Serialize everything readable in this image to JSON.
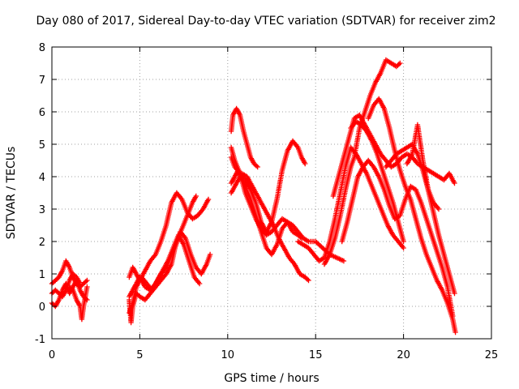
{
  "chart_data": {
    "type": "scatter",
    "title": "Day 080 of 2017, Sidereal Day-to-day VTEC variation (SDTVAR) for receiver zim2",
    "xlabel": "GPS time / hours",
    "ylabel": "SDTVAR / TECUs",
    "xlim": [
      0,
      25
    ],
    "ylim": [
      -1,
      8
    ],
    "xticks": [
      "0",
      "5",
      "10",
      "15",
      "20",
      "25"
    ],
    "yticks": [
      "-1",
      "0",
      "1",
      "2",
      "3",
      "4",
      "5",
      "6",
      "7",
      "8"
    ],
    "grid": true,
    "marker": "plus",
    "color": "#ff0000",
    "series": [
      {
        "x": [
          0.0,
          0.2,
          0.4,
          0.6,
          0.8,
          1.0,
          1.2,
          1.4,
          1.6,
          1.8,
          2.0
        ],
        "y": [
          0.1,
          0.0,
          0.2,
          0.5,
          0.7,
          0.4,
          0.6,
          0.8,
          0.5,
          0.3,
          0.2
        ]
      },
      {
        "x": [
          0.0,
          0.2,
          0.4,
          0.6,
          0.8,
          1.0,
          1.2,
          1.4,
          1.6,
          1.8,
          2.0
        ],
        "y": [
          0.7,
          0.8,
          0.9,
          1.1,
          1.4,
          1.2,
          0.9,
          0.7,
          0.6,
          0.7,
          0.8
        ]
      },
      {
        "x": [
          0.0,
          0.2,
          0.4,
          0.6,
          0.8,
          1.0,
          1.2,
          1.4,
          1.6
        ],
        "y": [
          0.4,
          0.5,
          0.4,
          0.3,
          0.5,
          0.8,
          1.0,
          0.9,
          0.7
        ]
      },
      {
        "x": [
          1.0,
          1.2,
          1.4,
          1.6,
          1.7,
          1.8,
          2.0
        ],
        "y": [
          0.6,
          0.5,
          0.2,
          0.0,
          -0.4,
          0.0,
          0.6
        ]
      },
      {
        "x": [
          4.4,
          4.5,
          4.6,
          4.8,
          5.0,
          5.3,
          5.6,
          5.9,
          6.2,
          6.5,
          6.8,
          7.0,
          7.3,
          7.6,
          7.9,
          8.2,
          8.5,
          8.8,
          9.0
        ],
        "y": [
          0.2,
          -0.5,
          0.0,
          0.4,
          0.3,
          0.2,
          0.4,
          0.6,
          0.8,
          1.0,
          1.3,
          1.8,
          2.3,
          2.1,
          1.6,
          1.2,
          1.0,
          1.3,
          1.6
        ]
      },
      {
        "x": [
          4.4,
          4.6,
          4.8,
          5.0,
          5.3,
          5.6,
          5.9,
          6.2,
          6.5,
          6.8,
          7.1,
          7.4,
          7.7,
          8.0,
          8.3,
          8.6,
          8.9
        ],
        "y": [
          0.9,
          1.2,
          1.0,
          0.8,
          1.1,
          1.4,
          1.6,
          2.0,
          2.5,
          3.2,
          3.5,
          3.3,
          2.9,
          2.7,
          2.8,
          3.0,
          3.3
        ]
      },
      {
        "x": [
          4.4,
          4.6,
          4.8,
          5.0,
          5.3,
          5.6,
          5.9,
          6.2,
          6.5,
          6.8,
          7.1,
          7.4,
          7.7,
          8.0,
          8.2
        ],
        "y": [
          0.3,
          0.5,
          0.7,
          0.9,
          0.6,
          0.5,
          0.7,
          1.0,
          1.2,
          1.6,
          2.0,
          2.4,
          2.8,
          3.2,
          3.4
        ]
      },
      {
        "x": [
          4.4,
          4.6,
          4.8,
          5.1,
          5.4,
          5.7,
          6.0,
          6.3,
          6.6,
          6.9,
          7.2,
          7.5,
          7.8,
          8.1,
          8.4
        ],
        "y": [
          -0.2,
          0.1,
          0.6,
          0.9,
          0.7,
          0.5,
          0.8,
          1.1,
          1.4,
          1.8,
          2.2,
          1.9,
          1.4,
          0.9,
          0.7
        ]
      },
      {
        "x": [
          10.2,
          10.4,
          10.6,
          10.8,
          11.0,
          11.3,
          11.6,
          11.9,
          12.2,
          12.5,
          12.8,
          13.1,
          13.4,
          13.7,
          14.0,
          14.2
        ],
        "y": [
          3.8,
          4.0,
          4.2,
          3.9,
          3.5,
          3.1,
          2.7,
          2.4,
          2.2,
          2.3,
          2.5,
          2.7,
          2.6,
          2.3,
          2.2,
          2.1
        ]
      },
      {
        "x": [
          10.2,
          10.3,
          10.5,
          10.7,
          10.9,
          11.1,
          11.3,
          11.5,
          11.7
        ],
        "y": [
          5.4,
          5.9,
          6.1,
          5.9,
          5.4,
          5.0,
          4.6,
          4.4,
          4.3
        ]
      },
      {
        "x": [
          10.2,
          10.4,
          10.7,
          11.0,
          11.3,
          11.6,
          11.9,
          12.2,
          12.5,
          12.8,
          13.1,
          13.4,
          13.7,
          14.0,
          14.2,
          14.4
        ],
        "y": [
          4.6,
          4.3,
          4.1,
          3.9,
          3.6,
          3.2,
          2.6,
          2.3,
          2.6,
          3.3,
          4.2,
          4.8,
          5.1,
          4.9,
          4.6,
          4.4
        ]
      },
      {
        "x": [
          10.2,
          10.4,
          10.7,
          11.0,
          11.3,
          11.6,
          11.9,
          12.2,
          12.5,
          12.8,
          13.1,
          13.4,
          13.7,
          14.0,
          14.3,
          14.6,
          15.0,
          15.4,
          15.8,
          16.2,
          16.6
        ],
        "y": [
          4.9,
          4.5,
          4.1,
          3.7,
          3.3,
          2.8,
          2.3,
          1.8,
          1.6,
          1.9,
          2.4,
          2.6,
          2.5,
          2.3,
          2.1,
          2.0,
          2.0,
          1.8,
          1.6,
          1.5,
          1.4
        ]
      },
      {
        "x": [
          10.2,
          10.5,
          10.8,
          11.1,
          11.4,
          11.7,
          12.0,
          12.3,
          12.6,
          12.9,
          13.2,
          13.5,
          13.8,
          14.1,
          14.4,
          14.6
        ],
        "y": [
          3.5,
          3.8,
          4.1,
          4.0,
          3.7,
          3.4,
          3.1,
          2.8,
          2.5,
          2.1,
          1.8,
          1.5,
          1.3,
          1.0,
          0.9,
          0.8
        ]
      },
      {
        "x": [
          14.0,
          14.3,
          14.6,
          14.9,
          15.2,
          15.5,
          15.8,
          16.1,
          16.4,
          16.7,
          17.0,
          17.3,
          17.6,
          17.9,
          18.2,
          18.5,
          18.8,
          19.1,
          19.4,
          19.7,
          20.0
        ],
        "y": [
          2.0,
          1.9,
          1.8,
          1.6,
          1.4,
          1.5,
          2.0,
          2.7,
          3.5,
          4.3,
          4.9,
          4.7,
          4.4,
          4.1,
          3.7,
          3.3,
          2.9,
          2.5,
          2.2,
          2.0,
          1.8
        ]
      },
      {
        "x": [
          15.5,
          15.8,
          16.1,
          16.4,
          16.7,
          17.0,
          17.2,
          17.5,
          17.8,
          18.1,
          18.4,
          18.7,
          19.0,
          19.3,
          19.6,
          19.8
        ],
        "y": [
          1.3,
          1.6,
          2.1,
          2.8,
          3.6,
          4.3,
          4.6,
          5.5,
          6.0,
          6.5,
          6.9,
          7.2,
          7.6,
          7.5,
          7.4,
          7.5
        ]
      },
      {
        "x": [
          16.0,
          16.4,
          16.8,
          17.2,
          17.5,
          17.8,
          18.1,
          18.4,
          18.7,
          19.0,
          19.3,
          19.6,
          19.9,
          20.2,
          20.5,
          20.8,
          21.1,
          21.4,
          21.7,
          22.0,
          22.3,
          22.6,
          22.9
        ],
        "y": [
          3.4,
          4.2,
          5.0,
          5.8,
          5.9,
          5.6,
          5.3,
          5.0,
          4.7,
          4.5,
          4.3,
          4.4,
          4.6,
          4.7,
          4.6,
          4.4,
          4.3,
          4.2,
          4.1,
          4.0,
          3.9,
          4.1,
          3.8
        ]
      },
      {
        "x": [
          16.5,
          16.8,
          17.1,
          17.4,
          17.7,
          18.0,
          18.3,
          18.6,
          18.9,
          19.2,
          19.5,
          19.8,
          20.1,
          20.4,
          20.7,
          21.0,
          21.3,
          21.6,
          21.9,
          22.2,
          22.5,
          22.8
        ],
        "y": [
          2.0,
          2.6,
          3.3,
          4.0,
          4.3,
          4.5,
          4.3,
          4.0,
          3.6,
          3.1,
          2.7,
          2.8,
          3.3,
          3.7,
          3.6,
          3.2,
          2.7,
          2.2,
          1.7,
          1.2,
          0.6,
          -0.3
        ]
      },
      {
        "x": [
          18.0,
          18.3,
          18.6,
          18.9,
          19.2,
          19.5,
          19.8,
          20.1,
          20.4,
          20.7,
          21.0,
          21.3,
          21.6,
          21.9,
          22.2,
          22.5,
          22.8,
          22.95
        ],
        "y": [
          5.8,
          6.2,
          6.4,
          6.1,
          5.5,
          4.8,
          4.2,
          3.7,
          3.3,
          2.7,
          2.1,
          1.6,
          1.2,
          0.8,
          0.5,
          0.1,
          -0.4,
          -0.8
        ]
      },
      {
        "x": [
          20.2,
          20.5,
          20.8,
          21.1,
          21.4,
          21.7,
          22.0,
          22.3,
          22.6,
          22.9
        ],
        "y": [
          4.4,
          4.7,
          5.6,
          4.5,
          3.6,
          2.9,
          2.2,
          1.6,
          1.0,
          0.4
        ]
      },
      {
        "x": [
          19.0,
          19.3,
          19.6,
          19.9,
          20.2,
          20.5,
          20.8,
          21.1,
          21.4,
          21.7,
          22.0
        ],
        "y": [
          4.3,
          4.5,
          4.7,
          4.8,
          4.9,
          5.0,
          4.7,
          4.2,
          3.6,
          3.2,
          3.0
        ]
      },
      {
        "x": [
          17.0,
          17.3,
          17.6,
          17.9,
          18.2,
          18.5,
          18.8,
          19.1,
          19.4,
          19.7,
          20.0
        ],
        "y": [
          5.5,
          5.7,
          5.6,
          5.4,
          5.1,
          4.7,
          4.2,
          3.7,
          3.2,
          2.6,
          2.0
        ]
      }
    ]
  }
}
